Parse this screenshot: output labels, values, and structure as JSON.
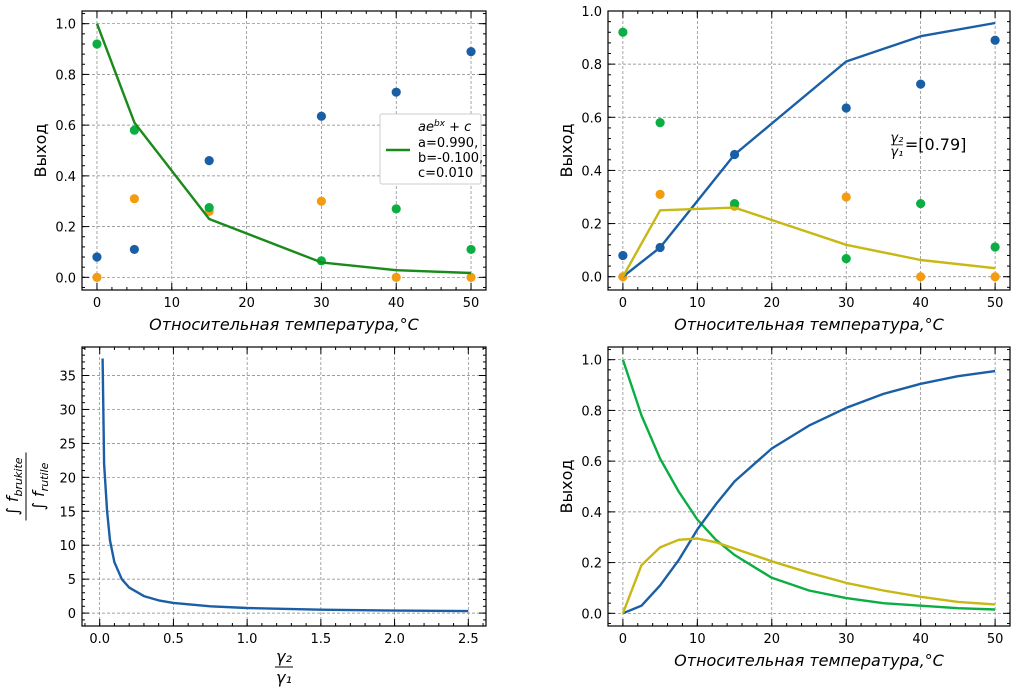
{
  "colors": {
    "blue": "#1a5fa6",
    "orange": "#f39c12",
    "green": "#0aae43",
    "fit_green": "#1a8a1a",
    "yellow": "#c8b814"
  },
  "chart_data": [
    {
      "type": "scatter",
      "xlabel": "Относительная температура,°C",
      "ylabel": "Выход",
      "xlim": [
        -2,
        52
      ],
      "ylim": [
        -0.05,
        1.05
      ],
      "xticks": [
        "0",
        "10",
        "20",
        "30",
        "40",
        "50"
      ],
      "yticks": [
        "0.0",
        "0.2",
        "0.4",
        "0.6",
        "0.8",
        "1.0"
      ],
      "grid": true,
      "series": [
        {
          "color": "blue",
          "x": [
            0,
            5,
            15,
            30,
            40,
            50
          ],
          "y": [
            0.08,
            0.11,
            0.46,
            0.635,
            0.73,
            0.89
          ]
        },
        {
          "color": "orange",
          "x": [
            0,
            5,
            15,
            30,
            40,
            50
          ],
          "y": [
            0.0,
            0.31,
            0.26,
            0.3,
            0.0,
            0.0
          ]
        },
        {
          "color": "green",
          "x": [
            0,
            5,
            15,
            30,
            40,
            50
          ],
          "y": [
            0.92,
            0.58,
            0.275,
            0.065,
            0.27,
            0.11
          ]
        },
        {
          "name": "fit",
          "type": "line",
          "color": "fit_green",
          "x": [
            0,
            5,
            15,
            30,
            40,
            50
          ],
          "y": [
            1.0,
            0.61,
            0.23,
            0.059,
            0.028,
            0.017
          ]
        }
      ],
      "legend": {
        "position": "center-right",
        "formula": "ae",
        "formula_exp": "bx",
        "formula_tail": " + c",
        "lines": [
          "a=0.990,",
          "b=-0.100,",
          "c=0.010"
        ]
      }
    },
    {
      "type": "scatter",
      "xlabel": "Относительная температура,°C",
      "ylabel": "Выход",
      "xlim": [
        -2,
        52
      ],
      "ylim": [
        -0.05,
        1.0
      ],
      "xticks": [
        "0",
        "10",
        "20",
        "30",
        "40",
        "50"
      ],
      "yticks": [
        "0.0",
        "0.2",
        "0.4",
        "0.6",
        "0.8",
        "1.0"
      ],
      "grid": true,
      "series": [
        {
          "color": "blue",
          "x": [
            0,
            5,
            15,
            30,
            40,
            50
          ],
          "y": [
            0.08,
            0.11,
            0.46,
            0.635,
            0.725,
            0.89
          ]
        },
        {
          "color": "orange",
          "x": [
            0,
            5,
            15,
            30,
            40,
            50
          ],
          "y": [
            0.0,
            0.31,
            0.265,
            0.3,
            0.0,
            0.0
          ]
        },
        {
          "color": "green",
          "x": [
            0,
            5,
            15,
            30,
            40,
            50
          ],
          "y": [
            0.92,
            0.58,
            0.275,
            0.068,
            0.275,
            0.112
          ]
        },
        {
          "type": "line",
          "color": "blue",
          "x": [
            0,
            5,
            15,
            30,
            40,
            50
          ],
          "y": [
            0.0,
            0.11,
            0.46,
            0.81,
            0.905,
            0.955
          ]
        },
        {
          "type": "line",
          "color": "yellow",
          "x": [
            0,
            5,
            15,
            30,
            40,
            50
          ],
          "y": [
            0.0,
            0.25,
            0.26,
            0.12,
            0.063,
            0.032
          ]
        }
      ],
      "annotation": {
        "text": "=[0.79]",
        "x": 36,
        "y": 0.5
      }
    },
    {
      "type": "line",
      "xlabel": "γ2/γ1",
      "ylabel": "∫ f_brukite / ∫ f_rutile",
      "xlim": [
        -0.12,
        2.62
      ],
      "ylim": [
        -1.9,
        39.2
      ],
      "xticks": [
        "0.0",
        "0.5",
        "1.0",
        "1.5",
        "2.0",
        "2.5"
      ],
      "yticks": [
        "0",
        "5",
        "10",
        "15",
        "20",
        "25",
        "30",
        "35"
      ],
      "grid": true,
      "series": [
        {
          "color": "blue",
          "x": [
            0.02,
            0.03,
            0.05,
            0.07,
            0.1,
            0.15,
            0.2,
            0.3,
            0.4,
            0.5,
            0.75,
            1.0,
            1.5,
            2.0,
            2.5
          ],
          "y": [
            37.5,
            22.0,
            15.0,
            10.7,
            7.5,
            5.0,
            3.75,
            2.5,
            1.87,
            1.5,
            1.0,
            0.75,
            0.5,
            0.37,
            0.3
          ]
        }
      ]
    },
    {
      "type": "line",
      "xlabel": "Относительная температура,°C",
      "ylabel": "Выход",
      "xlim": [
        -2,
        52
      ],
      "ylim": [
        -0.05,
        1.05
      ],
      "xticks": [
        "0",
        "10",
        "20",
        "30",
        "40",
        "50"
      ],
      "yticks": [
        "0.0",
        "0.2",
        "0.4",
        "0.6",
        "0.8",
        "1.0"
      ],
      "grid": true,
      "series": [
        {
          "color": "green",
          "x": [
            0,
            2.5,
            5,
            7.5,
            10,
            12.5,
            15,
            20,
            25,
            30,
            35,
            40,
            45,
            50
          ],
          "y": [
            1.0,
            0.78,
            0.61,
            0.48,
            0.37,
            0.29,
            0.23,
            0.14,
            0.09,
            0.06,
            0.04,
            0.03,
            0.02,
            0.015
          ]
        },
        {
          "color": "blue",
          "x": [
            0,
            2.5,
            5,
            7.5,
            10,
            12.5,
            15,
            20,
            25,
            30,
            35,
            40,
            45,
            50
          ],
          "y": [
            0.0,
            0.03,
            0.11,
            0.21,
            0.33,
            0.43,
            0.52,
            0.65,
            0.74,
            0.81,
            0.865,
            0.905,
            0.935,
            0.955
          ]
        },
        {
          "color": "yellow",
          "x": [
            0,
            2.5,
            5,
            7.5,
            10,
            12.5,
            15,
            20,
            25,
            30,
            35,
            40,
            45,
            50
          ],
          "y": [
            0.0,
            0.19,
            0.26,
            0.29,
            0.295,
            0.28,
            0.255,
            0.205,
            0.16,
            0.12,
            0.09,
            0.065,
            0.045,
            0.035
          ]
        }
      ]
    }
  ]
}
